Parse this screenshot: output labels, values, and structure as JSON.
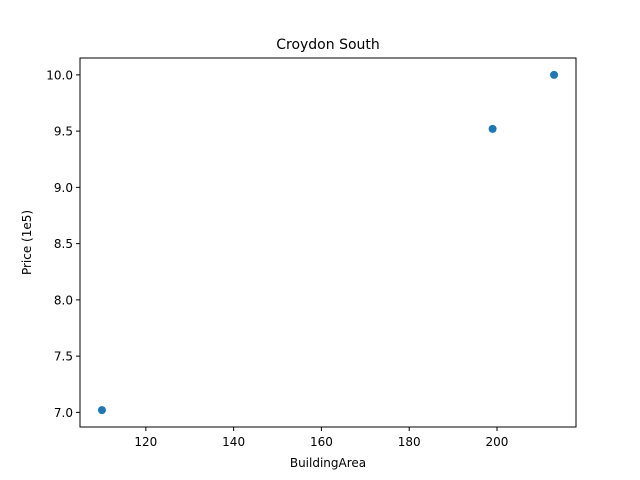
{
  "chart_data": {
    "type": "scatter",
    "title": "Croydon South",
    "xlabel": "BuildingArea",
    "ylabel": "Price (1e5)",
    "xlim": [
      105,
      218
    ],
    "ylim": [
      6.87,
      10.15
    ],
    "xticks": [
      120,
      140,
      160,
      180,
      200
    ],
    "yticks": [
      7.0,
      7.5,
      8.0,
      8.5,
      9.0,
      9.5,
      10.0
    ],
    "ytick_labels": [
      "7.0",
      "7.5",
      "8.0",
      "8.5",
      "9.0",
      "9.5",
      "10.0"
    ],
    "grid": false,
    "series": [
      {
        "x": [
          110,
          199,
          213
        ],
        "y": [
          7.02,
          9.52,
          10.0
        ]
      }
    ]
  },
  "colors": {
    "marker": "#1f77b4",
    "axes": "#000000",
    "background": "#ffffff"
  }
}
